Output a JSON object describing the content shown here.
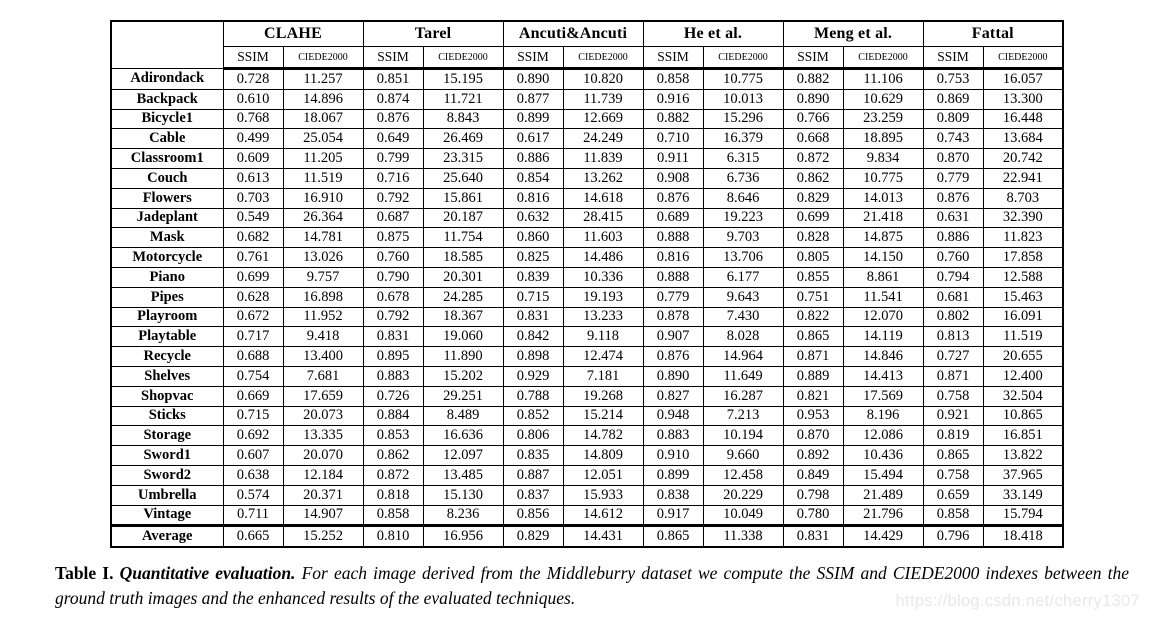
{
  "table": {
    "corner_label": "",
    "groups": [
      {
        "name": "CLAHE",
        "metrics": [
          "SSIM",
          "CIEDE2000"
        ]
      },
      {
        "name": "Tarel",
        "metrics": [
          "SSIM",
          "CIEDE2000"
        ]
      },
      {
        "name": "Ancuti&Ancuti",
        "metrics": [
          "SSIM",
          "CIEDE2000"
        ]
      },
      {
        "name": "He et al.",
        "metrics": [
          "SSIM",
          "CIEDE2000"
        ]
      },
      {
        "name": "Meng et al.",
        "metrics": [
          "SSIM",
          "CIEDE2000"
        ]
      },
      {
        "name": "Fattal",
        "metrics": [
          "SSIM",
          "CIEDE2000"
        ]
      }
    ],
    "rows": [
      {
        "label": "Adirondack",
        "values": [
          "0.728",
          "11.257",
          "0.851",
          "15.195",
          "0.890",
          "10.820",
          "0.858",
          "10.775",
          "0.882",
          "11.106",
          "0.753",
          "16.057"
        ]
      },
      {
        "label": "Backpack",
        "values": [
          "0.610",
          "14.896",
          "0.874",
          "11.721",
          "0.877",
          "11.739",
          "0.916",
          "10.013",
          "0.890",
          "10.629",
          "0.869",
          "13.300"
        ]
      },
      {
        "label": "Bicycle1",
        "values": [
          "0.768",
          "18.067",
          "0.876",
          "8.843",
          "0.899",
          "12.669",
          "0.882",
          "15.296",
          "0.766",
          "23.259",
          "0.809",
          "16.448"
        ]
      },
      {
        "label": "Cable",
        "values": [
          "0.499",
          "25.054",
          "0.649",
          "26.469",
          "0.617",
          "24.249",
          "0.710",
          "16.379",
          "0.668",
          "18.895",
          "0.743",
          "13.684"
        ]
      },
      {
        "label": "Classroom1",
        "values": [
          "0.609",
          "11.205",
          "0.799",
          "23.315",
          "0.886",
          "11.839",
          "0.911",
          "6.315",
          "0.872",
          "9.834",
          "0.870",
          "20.742"
        ]
      },
      {
        "label": "Couch",
        "values": [
          "0.613",
          "11.519",
          "0.716",
          "25.640",
          "0.854",
          "13.262",
          "0.908",
          "6.736",
          "0.862",
          "10.775",
          "0.779",
          "22.941"
        ]
      },
      {
        "label": "Flowers",
        "values": [
          "0.703",
          "16.910",
          "0.792",
          "15.861",
          "0.816",
          "14.618",
          "0.876",
          "8.646",
          "0.829",
          "14.013",
          "0.876",
          "8.703"
        ]
      },
      {
        "label": "Jadeplant",
        "values": [
          "0.549",
          "26.364",
          "0.687",
          "20.187",
          "0.632",
          "28.415",
          "0.689",
          "19.223",
          "0.699",
          "21.418",
          "0.631",
          "32.390"
        ]
      },
      {
        "label": "Mask",
        "values": [
          "0.682",
          "14.781",
          "0.875",
          "11.754",
          "0.860",
          "11.603",
          "0.888",
          "9.703",
          "0.828",
          "14.875",
          "0.886",
          "11.823"
        ]
      },
      {
        "label": "Motorcycle",
        "values": [
          "0.761",
          "13.026",
          "0.760",
          "18.585",
          "0.825",
          "14.486",
          "0.816",
          "13.706",
          "0.805",
          "14.150",
          "0.760",
          "17.858"
        ]
      },
      {
        "label": "Piano",
        "values": [
          "0.699",
          "9.757",
          "0.790",
          "20.301",
          "0.839",
          "10.336",
          "0.888",
          "6.177",
          "0.855",
          "8.861",
          "0.794",
          "12.588"
        ]
      },
      {
        "label": "Pipes",
        "values": [
          "0.628",
          "16.898",
          "0.678",
          "24.285",
          "0.715",
          "19.193",
          "0.779",
          "9.643",
          "0.751",
          "11.541",
          "0.681",
          "15.463"
        ]
      },
      {
        "label": "Playroom",
        "values": [
          "0.672",
          "11.952",
          "0.792",
          "18.367",
          "0.831",
          "13.233",
          "0.878",
          "7.430",
          "0.822",
          "12.070",
          "0.802",
          "16.091"
        ]
      },
      {
        "label": "Playtable",
        "values": [
          "0.717",
          "9.418",
          "0.831",
          "19.060",
          "0.842",
          "9.118",
          "0.907",
          "8.028",
          "0.865",
          "14.119",
          "0.813",
          "11.519"
        ]
      },
      {
        "label": "Recycle",
        "values": [
          "0.688",
          "13.400",
          "0.895",
          "11.890",
          "0.898",
          "12.474",
          "0.876",
          "14.964",
          "0.871",
          "14.846",
          "0.727",
          "20.655"
        ]
      },
      {
        "label": "Shelves",
        "values": [
          "0.754",
          "7.681",
          "0.883",
          "15.202",
          "0.929",
          "7.181",
          "0.890",
          "11.649",
          "0.889",
          "14.413",
          "0.871",
          "12.400"
        ]
      },
      {
        "label": "Shopvac",
        "values": [
          "0.669",
          "17.659",
          "0.726",
          "29.251",
          "0.788",
          "19.268",
          "0.827",
          "16.287",
          "0.821",
          "17.569",
          "0.758",
          "32.504"
        ]
      },
      {
        "label": "Sticks",
        "values": [
          "0.715",
          "20.073",
          "0.884",
          "8.489",
          "0.852",
          "15.214",
          "0.948",
          "7.213",
          "0.953",
          "8.196",
          "0.921",
          "10.865"
        ]
      },
      {
        "label": "Storage",
        "values": [
          "0.692",
          "13.335",
          "0.853",
          "16.636",
          "0.806",
          "14.782",
          "0.883",
          "10.194",
          "0.870",
          "12.086",
          "0.819",
          "16.851"
        ]
      },
      {
        "label": "Sword1",
        "values": [
          "0.607",
          "20.070",
          "0.862",
          "12.097",
          "0.835",
          "14.809",
          "0.910",
          "9.660",
          "0.892",
          "10.436",
          "0.865",
          "13.822"
        ]
      },
      {
        "label": "Sword2",
        "values": [
          "0.638",
          "12.184",
          "0.872",
          "13.485",
          "0.887",
          "12.051",
          "0.899",
          "12.458",
          "0.849",
          "15.494",
          "0.758",
          "37.965"
        ]
      },
      {
        "label": "Umbrella",
        "values": [
          "0.574",
          "20.371",
          "0.818",
          "15.130",
          "0.837",
          "15.933",
          "0.838",
          "20.229",
          "0.798",
          "21.489",
          "0.659",
          "33.149"
        ]
      },
      {
        "label": "Vintage",
        "values": [
          "0.711",
          "14.907",
          "0.858",
          "8.236",
          "0.856",
          "14.612",
          "0.917",
          "10.049",
          "0.780",
          "21.796",
          "0.858",
          "15.794"
        ]
      }
    ],
    "average": {
      "label": "Average",
      "values": [
        "0.665",
        "15.252",
        "0.810",
        "16.956",
        "0.829",
        "14.431",
        "0.865",
        "11.338",
        "0.831",
        "14.429",
        "0.796",
        "18.418"
      ]
    }
  },
  "caption": {
    "label": "Table I.",
    "title": "Quantitative evaluation.",
    "body": "For each image derived from the Middleburry dataset we compute the SSIM and CIEDE2000 indexes between the ground truth images and the enhanced results of the evaluated techniques."
  },
  "watermark": {
    "text": "https://blog.csdn.net/cherry1307",
    "color": "#e8e8e8"
  }
}
